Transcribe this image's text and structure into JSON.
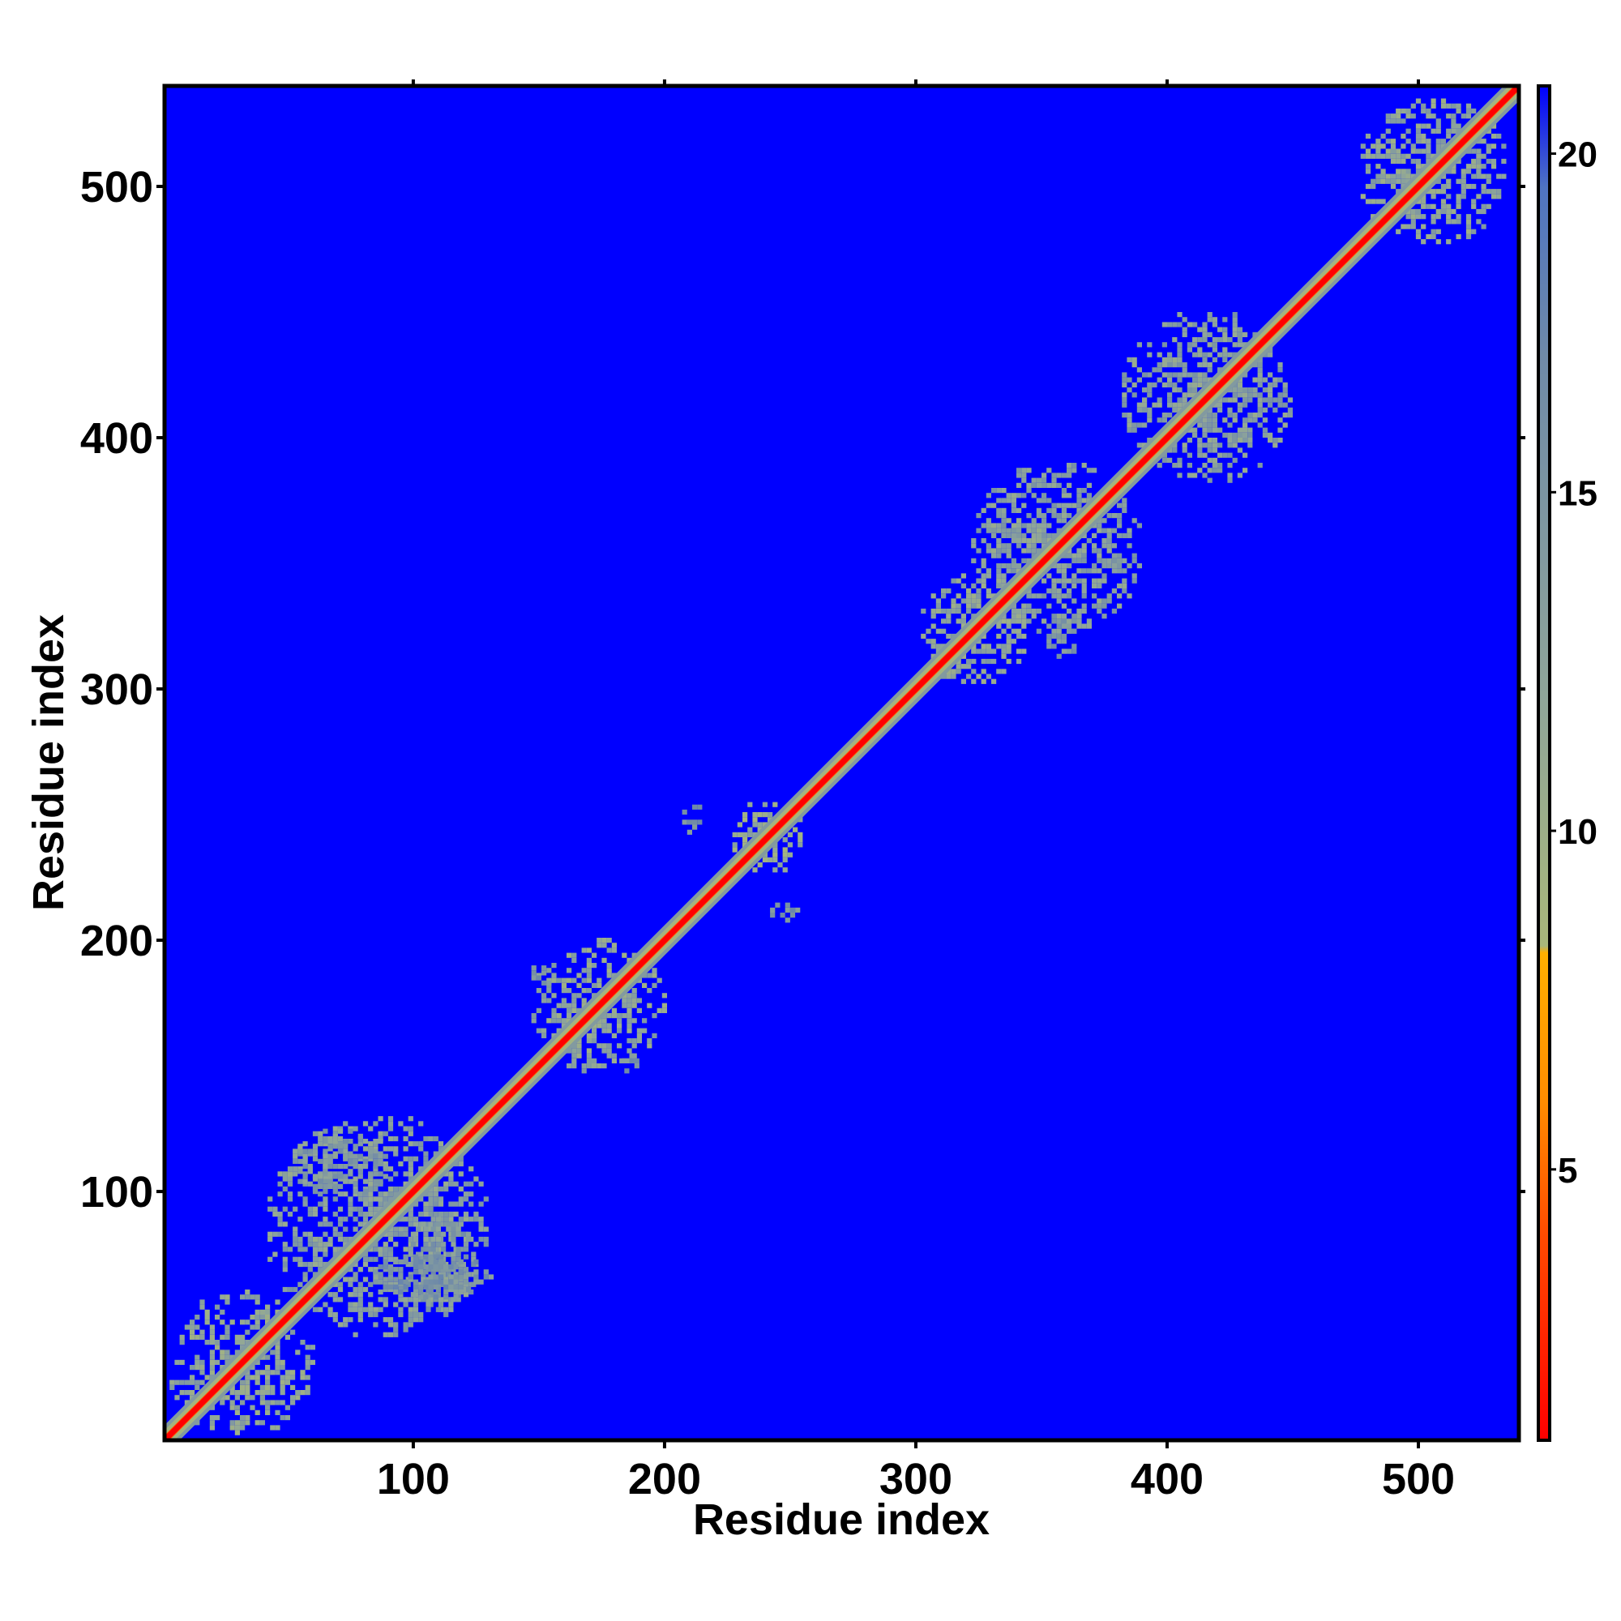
{
  "chart_data": {
    "type": "heatmap",
    "title": "",
    "xlabel": "Residue index",
    "ylabel": "Residue index",
    "xlim": [
      1,
      540
    ],
    "ylim": [
      1,
      540
    ],
    "n_residues": 540,
    "x_ticks": [
      100,
      200,
      300,
      400,
      500
    ],
    "y_ticks": [
      100,
      200,
      300,
      400,
      500
    ],
    "x_tick_labels": [
      "100",
      "200",
      "300",
      "400",
      "500"
    ],
    "y_tick_labels": [
      "100",
      "200",
      "300",
      "400",
      "500"
    ],
    "colorbar": {
      "min": 1,
      "max": 21,
      "ticks": [
        5,
        10,
        15,
        20
      ],
      "tick_labels": [
        "5",
        "10",
        "15",
        "20"
      ],
      "colors": [
        {
          "value": 1,
          "color": "#ff0000"
        },
        {
          "value": 4,
          "color": "#ff4a00"
        },
        {
          "value": 6,
          "color": "#ff8c00"
        },
        {
          "value": 8.2,
          "color": "#ffb000"
        },
        {
          "value": 8.3,
          "color": "#a9b77a"
        },
        {
          "value": 12,
          "color": "#8fa59a"
        },
        {
          "value": 17,
          "color": "#6f8aa8"
        },
        {
          "value": 19.5,
          "color": "#4f74c2"
        },
        {
          "value": 21,
          "color": "#0000ff"
        }
      ]
    },
    "background_value": 21,
    "diagonal_value": 1,
    "contact_blocks": [
      {
        "x": [
          1,
          60
        ],
        "y": [
          1,
          60
        ],
        "value": 12
      },
      {
        "x": [
          40,
          130
        ],
        "y": [
          40,
          130
        ],
        "value": 13
      },
      {
        "x": [
          50,
          90
        ],
        "y": [
          95,
          125
        ],
        "value": 14
      },
      {
        "x": [
          95,
          125
        ],
        "y": [
          50,
          90
        ],
        "value": 14
      },
      {
        "x": [
          80,
          130
        ],
        "y": [
          55,
          75
        ],
        "value": 15
      },
      {
        "x": [
          145,
          200
        ],
        "y": [
          145,
          200
        ],
        "value": 12
      },
      {
        "x": [
          145,
          155
        ],
        "y": [
          180,
          190
        ],
        "value": 15
      },
      {
        "x": [
          180,
          190
        ],
        "y": [
          145,
          155
        ],
        "value": 15
      },
      {
        "x": [
          225,
          255
        ],
        "y": [
          225,
          255
        ],
        "value": 11
      },
      {
        "x": [
          205,
          215
        ],
        "y": [
          240,
          255
        ],
        "value": 15
      },
      {
        "x": [
          240,
          255
        ],
        "y": [
          205,
          215
        ],
        "value": 15
      },
      {
        "x": [
          300,
          345
        ],
        "y": [
          300,
          345
        ],
        "value": 12
      },
      {
        "x": [
          320,
          390
        ],
        "y": [
          320,
          390
        ],
        "value": 13
      },
      {
        "x": [
          380,
          450
        ],
        "y": [
          380,
          450
        ],
        "value": 13
      },
      {
        "x": [
          350,
          365
        ],
        "y": [
          310,
          330
        ],
        "value": 14
      },
      {
        "x": [
          475,
          535
        ],
        "y": [
          475,
          535
        ],
        "value": 12
      }
    ]
  }
}
